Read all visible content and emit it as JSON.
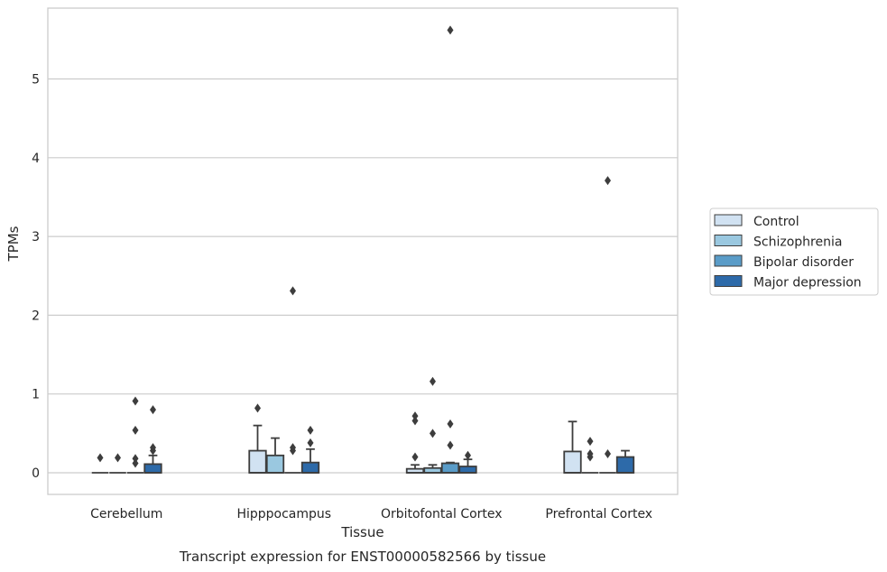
{
  "caption": "Transcript expression for ENST00000582566 by tissue",
  "chart_data": {
    "type": "box",
    "xlabel": "Tissue",
    "ylabel": "TPMs",
    "ylim": [
      -0.28,
      5.9
    ],
    "yticks": [
      0,
      1,
      2,
      3,
      4,
      5
    ],
    "grid": "horizontal",
    "legend_position": "right",
    "categories": [
      "Cerebellum",
      "Hipppocampus",
      "Orbitofontal Cortex",
      "Prefrontal Cortex"
    ],
    "series": [
      {
        "name": "Control",
        "color": "#d1e2f2",
        "boxes": [
          {
            "q1": 0,
            "median": 0,
            "q3": 0,
            "whisker_low": 0,
            "whisker_high": 0,
            "outliers": [
              0.19
            ]
          },
          {
            "q1": 0,
            "median": 0,
            "q3": 0.28,
            "whisker_low": 0,
            "whisker_high": 0.6,
            "outliers": [
              0.82
            ]
          },
          {
            "q1": 0,
            "median": 0,
            "q3": 0.05,
            "whisker_low": 0,
            "whisker_high": 0.1,
            "outliers": [
              0.2,
              0.66,
              0.72
            ]
          },
          {
            "q1": 0,
            "median": 0,
            "q3": 0.27,
            "whisker_low": 0,
            "whisker_high": 0.65,
            "outliers": []
          }
        ]
      },
      {
        "name": "Schizophrenia",
        "color": "#9ac8e0",
        "boxes": [
          {
            "q1": 0,
            "median": 0,
            "q3": 0,
            "whisker_low": 0,
            "whisker_high": 0,
            "outliers": [
              0.19
            ]
          },
          {
            "q1": 0,
            "median": 0,
            "q3": 0.22,
            "whisker_low": 0,
            "whisker_high": 0.44,
            "outliers": []
          },
          {
            "q1": 0,
            "median": 0,
            "q3": 0.06,
            "whisker_low": 0,
            "whisker_high": 0.1,
            "outliers": [
              0.5,
              1.16
            ]
          },
          {
            "q1": 0,
            "median": 0,
            "q3": 0,
            "whisker_low": 0,
            "whisker_high": 0,
            "outliers": [
              0.2,
              0.24,
              0.4
            ]
          }
        ]
      },
      {
        "name": "Bipolar disorder",
        "color": "#5a9cc8",
        "boxes": [
          {
            "q1": 0,
            "median": 0,
            "q3": 0,
            "whisker_low": 0,
            "whisker_high": 0,
            "outliers": [
              0.12,
              0.18,
              0.54,
              0.91
            ]
          },
          {
            "q1": 0,
            "median": 0,
            "q3": 0,
            "whisker_low": 0,
            "whisker_high": 0,
            "outliers": [
              0.28,
              0.32,
              2.31
            ]
          },
          {
            "q1": 0,
            "median": 0,
            "q3": 0.12,
            "whisker_low": 0,
            "whisker_high": 0.13,
            "outliers": [
              0.35,
              0.62,
              5.62
            ]
          },
          {
            "q1": 0,
            "median": 0,
            "q3": 0,
            "whisker_low": 0,
            "whisker_high": 0,
            "outliers": [
              0.24,
              3.71
            ]
          }
        ]
      },
      {
        "name": "Major depression",
        "color": "#2d6aa9",
        "boxes": [
          {
            "q1": 0,
            "median": 0,
            "q3": 0.11,
            "whisker_low": 0,
            "whisker_high": 0.22,
            "outliers": [
              0.28,
              0.32,
              0.8
            ]
          },
          {
            "q1": 0,
            "median": 0,
            "q3": 0.13,
            "whisker_low": 0,
            "whisker_high": 0.3,
            "outliers": [
              0.38,
              0.54
            ]
          },
          {
            "q1": 0,
            "median": 0,
            "q3": 0.08,
            "whisker_low": 0,
            "whisker_high": 0.17,
            "outliers": [
              0.22
            ]
          },
          {
            "q1": 0,
            "median": 0,
            "q3": 0.2,
            "whisker_low": 0,
            "whisker_high": 0.28,
            "outliers": []
          }
        ]
      }
    ]
  }
}
